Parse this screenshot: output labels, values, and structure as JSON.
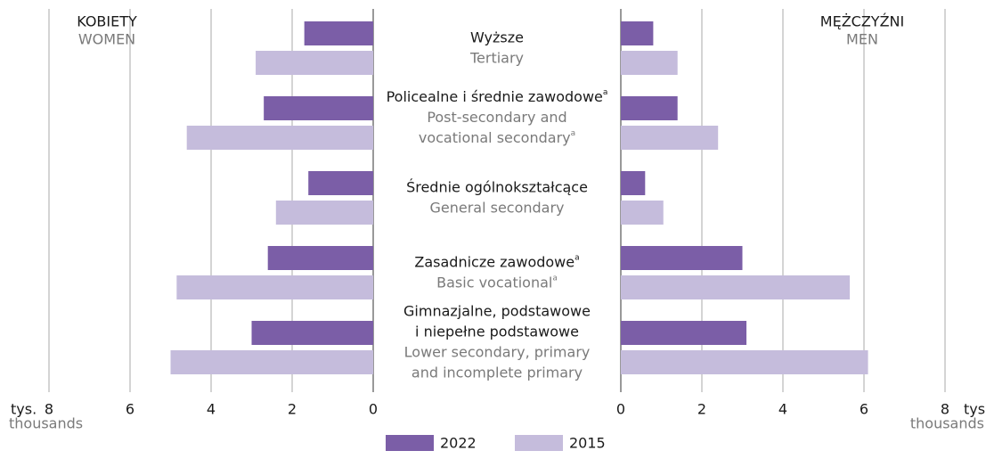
{
  "chart_data": {
    "type": "butterfly",
    "categories": [
      [
        "Wyższe"
      ],
      [
        "Policealne i średnie zawodowe"
      ],
      [
        "Średnie ogólnokształcące"
      ],
      [
        "Zasadnicze zawodowe"
      ],
      [
        "Gimnazjalne, podstawowe",
        "i niepełne podstawowe"
      ]
    ],
    "categories_en": [
      [
        "Tertiary"
      ],
      [
        "Post-secondary and",
        "vocational secondary"
      ],
      [
        "General secondary"
      ],
      [
        "Basic vocational"
      ],
      [
        "Lower secondary, primary",
        "and incomplete  primary"
      ]
    ],
    "category_notes": [
      null,
      "a",
      null,
      "a",
      null
    ],
    "xlim": [
      0,
      8
    ],
    "xticks": [
      0,
      2,
      4,
      6,
      8
    ],
    "unit": "tys.",
    "unit_en": "thousands",
    "panels": [
      {
        "title": "KOBIETY",
        "subtitle": "WOMEN",
        "side": "left",
        "series": [
          {
            "name": "2022",
            "color": "#7b5ea7",
            "values": [
              1.7,
              2.7,
              1.6,
              2.6,
              3.0
            ]
          },
          {
            "name": "2015",
            "color": "#c5bcdc",
            "values": [
              2.9,
              4.6,
              2.4,
              4.85,
              5.0
            ]
          }
        ]
      },
      {
        "title": "MĘŻCZYŹNI",
        "subtitle": "MEN",
        "side": "right",
        "series": [
          {
            "name": "2022",
            "color": "#7b5ea7",
            "values": [
              0.8,
              1.4,
              0.6,
              3.0,
              3.1
            ]
          },
          {
            "name": "2015",
            "color": "#c5bcdc",
            "values": [
              1.4,
              2.4,
              1.05,
              5.65,
              6.1
            ]
          }
        ]
      }
    ]
  }
}
